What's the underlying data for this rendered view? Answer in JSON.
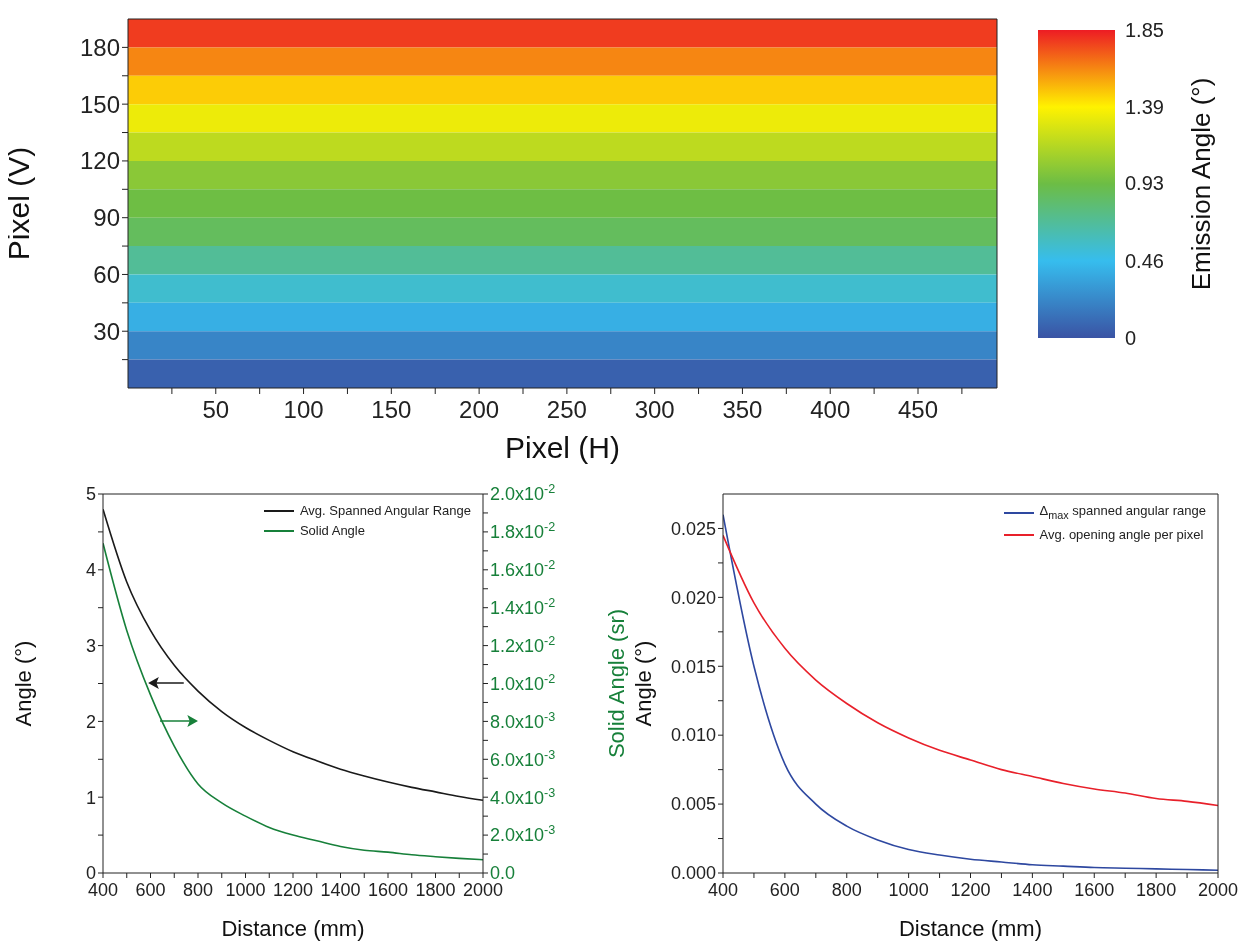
{
  "chart_data": [
    {
      "type": "heatmap",
      "xlabel": "Pixel (H)",
      "ylabel": "Pixel (V)",
      "clabel": "Emission Angle (°)",
      "xlim": [
        0,
        495
      ],
      "xticks": [
        {
          "value": 25,
          "label": null
        },
        50,
        {
          "value": 75,
          "label": null
        },
        100,
        {
          "value": 125,
          "label": null
        },
        150,
        {
          "value": 175,
          "label": null
        },
        200,
        {
          "value": 225,
          "label": null
        },
        250,
        {
          "value": 275,
          "label": null
        },
        300,
        {
          "value": 325,
          "label": null
        },
        350,
        {
          "value": 375,
          "label": null
        },
        400,
        {
          "value": 425,
          "label": null
        },
        450,
        {
          "value": 475,
          "label": null
        }
      ],
      "ylim": [
        0,
        195
      ],
      "yticks": [
        {
          "value": 15,
          "label": null
        },
        30,
        {
          "value": 45,
          "label": null
        },
        60,
        {
          "value": 75,
          "label": null
        },
        90,
        {
          "value": 105,
          "label": null
        },
        120,
        {
          "value": 135,
          "label": null
        },
        150,
        {
          "value": 165,
          "label": null
        },
        180
      ],
      "cells": [
        [
          1.78
        ],
        [
          1.62
        ],
        [
          1.47
        ],
        [
          1.33
        ],
        [
          1.18
        ],
        [
          1.02
        ],
        [
          0.93
        ],
        [
          0.86
        ],
        [
          0.7
        ],
        [
          0.55
        ],
        [
          0.4
        ],
        [
          0.22
        ],
        [
          0.06
        ]
      ],
      "clim": [
        0,
        1.85
      ],
      "cticks": [
        0,
        0.46,
        0.93,
        1.39,
        1.85
      ]
    },
    {
      "type": "line",
      "xlabel": "Distance (mm)",
      "ylabel": "Angle (°)",
      "y2label": "Solid Angle (sr)",
      "legend": "top right",
      "x": [
        400,
        500,
        600,
        700,
        800,
        900,
        1000,
        1100,
        1200,
        1300,
        1400,
        1500,
        1600,
        1700,
        1800,
        1900,
        2000
      ],
      "series": [
        {
          "name": "Avg. Spanned Angular Range",
          "color": "#1a1a1a",
          "values": [
            4.8,
            3.84,
            3.2,
            2.74,
            2.4,
            2.13,
            1.92,
            1.75,
            1.6,
            1.48,
            1.37,
            1.28,
            1.2,
            1.13,
            1.07,
            1.01,
            0.96
          ]
        },
        {
          "name": "Solid Angle",
          "color": "#17803a",
          "axis": "y2",
          "values": [
            0.0174,
            0.0128,
            0.0094,
            0.0067,
            0.0047,
            0.0037,
            0.003,
            0.0024,
            0.002,
            0.0017,
            0.0014,
            0.0012,
            0.0011,
            0.00096,
            0.00086,
            0.00077,
            0.0007
          ]
        }
      ],
      "xlim": [
        400,
        2000
      ],
      "xticks": [
        400,
        {
          "value": 500,
          "label": null
        },
        600,
        {
          "value": 700,
          "label": null
        },
        800,
        {
          "value": 900,
          "label": null
        },
        1000,
        {
          "value": 1100,
          "label": null
        },
        1200,
        {
          "value": 1300,
          "label": null
        },
        1400,
        {
          "value": 1500,
          "label": null
        },
        1600,
        {
          "value": 1700,
          "label": null
        },
        1800,
        {
          "value": 1900,
          "label": null
        },
        2000
      ],
      "ylim": [
        0,
        5
      ],
      "yticks": [
        0,
        {
          "value": 0.5,
          "label": null
        },
        1,
        {
          "value": 1.5,
          "label": null
        },
        2,
        {
          "value": 2.5,
          "label": null
        },
        3,
        {
          "value": 3.5,
          "label": null
        },
        4,
        {
          "value": 4.5,
          "label": null
        },
        5
      ],
      "y2lim": [
        0,
        0.02
      ],
      "y2ticks": [
        {
          "value": 0,
          "label": "0.0"
        },
        {
          "value": 0.001,
          "label": null
        },
        {
          "value": 0.002,
          "label": "2.0x10$^{-3}$"
        },
        {
          "value": 0.003,
          "label": null
        },
        {
          "value": 0.004,
          "label": "4.0x10$^{-3}$"
        },
        {
          "value": 0.005,
          "label": null
        },
        {
          "value": 0.006,
          "label": "6.0x10$^{-3}$"
        },
        {
          "value": 0.007,
          "label": null
        },
        {
          "value": 0.008,
          "label": "8.0x10$^{-3}$"
        },
        {
          "value": 0.009,
          "label": null
        },
        {
          "value": 0.01,
          "label": "1.0x10$^{-2}$"
        },
        {
          "value": 0.011,
          "label": null
        },
        {
          "value": 0.012,
          "label": "1.2x10$^{-2}$"
        },
        {
          "value": 0.013,
          "label": null
        },
        {
          "value": 0.014,
          "label": "1.4x10$^{-2}$"
        },
        {
          "value": 0.015,
          "label": null
        },
        {
          "value": 0.016,
          "label": "1.6x10$^{-2}$"
        },
        {
          "value": 0.017,
          "label": null
        },
        {
          "value": 0.018,
          "label": "1.8x10$^{-2}$"
        },
        {
          "value": 0.019,
          "label": null
        },
        {
          "value": 0.02,
          "label": "2.0x10$^{-2}$"
        }
      ]
    },
    {
      "type": "line",
      "xlabel": "Distance (mm)",
      "ylabel": "Angle (°)",
      "legend": "top right",
      "x": [
        400,
        500,
        600,
        700,
        800,
        900,
        1000,
        1100,
        1200,
        1300,
        1400,
        1500,
        1600,
        1700,
        1800,
        1900,
        2000
      ],
      "series": [
        {
          "name": "Δ$_{max}$ spanned angular range",
          "color": "#2e48a0",
          "values": [
            0.026,
            0.015,
            0.0079,
            0.005,
            0.0034,
            0.0024,
            0.0017,
            0.0013,
            0.001,
            0.0008,
            0.0006,
            0.0005,
            0.0004,
            0.00035,
            0.0003,
            0.00025,
            0.0002
          ]
        },
        {
          "name": "Avg. opening angle per pixel",
          "color": "#e8202a",
          "values": [
            0.0245,
            0.0196,
            0.0163,
            0.014,
            0.0123,
            0.0109,
            0.0098,
            0.0089,
            0.0082,
            0.0075,
            0.007,
            0.0065,
            0.0061,
            0.0058,
            0.0054,
            0.0052,
            0.0049
          ]
        }
      ],
      "xlim": [
        400,
        2000
      ],
      "xticks": [
        400,
        {
          "value": 500,
          "label": null
        },
        600,
        {
          "value": 700,
          "label": null
        },
        800,
        {
          "value": 900,
          "label": null
        },
        1000,
        {
          "value": 1100,
          "label": null
        },
        1200,
        {
          "value": 1300,
          "label": null
        },
        1400,
        {
          "value": 1500,
          "label": null
        },
        1600,
        {
          "value": 1700,
          "label": null
        },
        1800,
        {
          "value": 1900,
          "label": null
        },
        2000
      ],
      "ylim": [
        0,
        0.0275
      ],
      "yticks": [
        {
          "value": 0,
          "label": "0.000"
        },
        {
          "value": 0.0025,
          "label": null
        },
        {
          "value": 0.005,
          "label": "0.005"
        },
        {
          "value": 0.0075,
          "label": null
        },
        {
          "value": 0.01,
          "label": "0.010"
        },
        {
          "value": 0.0125,
          "label": null
        },
        {
          "value": 0.015,
          "label": "0.015"
        },
        {
          "value": 0.0175,
          "label": null
        },
        {
          "value": 0.02,
          "label": "0.020"
        },
        {
          "value": 0.0225,
          "label": null
        },
        {
          "value": 0.025,
          "label": "0.025"
        }
      ]
    }
  ]
}
